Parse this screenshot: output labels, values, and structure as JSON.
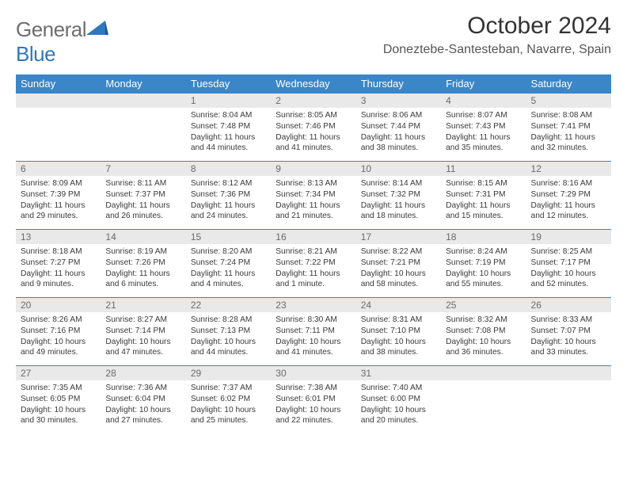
{
  "logo": {
    "text1": "General",
    "text2": "Blue"
  },
  "title": "October 2024",
  "location": "Doneztebe-Santesteban, Navarre, Spain",
  "colors": {
    "header_bg": "#3b86c7",
    "header_text": "#ffffff",
    "daynum_bg": "#e9e9e9",
    "daynum_text": "#6a6a6a",
    "row_border": "#3b86c7",
    "logo_gray": "#6e6e6e",
    "logo_blue": "#2f77bb"
  },
  "weekdays": [
    "Sunday",
    "Monday",
    "Tuesday",
    "Wednesday",
    "Thursday",
    "Friday",
    "Saturday"
  ],
  "first_weekday_index": 2,
  "days": [
    {
      "n": 1,
      "sunrise": "8:04 AM",
      "sunset": "7:48 PM",
      "daylight": "11 hours and 44 minutes."
    },
    {
      "n": 2,
      "sunrise": "8:05 AM",
      "sunset": "7:46 PM",
      "daylight": "11 hours and 41 minutes."
    },
    {
      "n": 3,
      "sunrise": "8:06 AM",
      "sunset": "7:44 PM",
      "daylight": "11 hours and 38 minutes."
    },
    {
      "n": 4,
      "sunrise": "8:07 AM",
      "sunset": "7:43 PM",
      "daylight": "11 hours and 35 minutes."
    },
    {
      "n": 5,
      "sunrise": "8:08 AM",
      "sunset": "7:41 PM",
      "daylight": "11 hours and 32 minutes."
    },
    {
      "n": 6,
      "sunrise": "8:09 AM",
      "sunset": "7:39 PM",
      "daylight": "11 hours and 29 minutes."
    },
    {
      "n": 7,
      "sunrise": "8:11 AM",
      "sunset": "7:37 PM",
      "daylight": "11 hours and 26 minutes."
    },
    {
      "n": 8,
      "sunrise": "8:12 AM",
      "sunset": "7:36 PM",
      "daylight": "11 hours and 24 minutes."
    },
    {
      "n": 9,
      "sunrise": "8:13 AM",
      "sunset": "7:34 PM",
      "daylight": "11 hours and 21 minutes."
    },
    {
      "n": 10,
      "sunrise": "8:14 AM",
      "sunset": "7:32 PM",
      "daylight": "11 hours and 18 minutes."
    },
    {
      "n": 11,
      "sunrise": "8:15 AM",
      "sunset": "7:31 PM",
      "daylight": "11 hours and 15 minutes."
    },
    {
      "n": 12,
      "sunrise": "8:16 AM",
      "sunset": "7:29 PM",
      "daylight": "11 hours and 12 minutes."
    },
    {
      "n": 13,
      "sunrise": "8:18 AM",
      "sunset": "7:27 PM",
      "daylight": "11 hours and 9 minutes."
    },
    {
      "n": 14,
      "sunrise": "8:19 AM",
      "sunset": "7:26 PM",
      "daylight": "11 hours and 6 minutes."
    },
    {
      "n": 15,
      "sunrise": "8:20 AM",
      "sunset": "7:24 PM",
      "daylight": "11 hours and 4 minutes."
    },
    {
      "n": 16,
      "sunrise": "8:21 AM",
      "sunset": "7:22 PM",
      "daylight": "11 hours and 1 minute."
    },
    {
      "n": 17,
      "sunrise": "8:22 AM",
      "sunset": "7:21 PM",
      "daylight": "10 hours and 58 minutes."
    },
    {
      "n": 18,
      "sunrise": "8:24 AM",
      "sunset": "7:19 PM",
      "daylight": "10 hours and 55 minutes."
    },
    {
      "n": 19,
      "sunrise": "8:25 AM",
      "sunset": "7:17 PM",
      "daylight": "10 hours and 52 minutes."
    },
    {
      "n": 20,
      "sunrise": "8:26 AM",
      "sunset": "7:16 PM",
      "daylight": "10 hours and 49 minutes."
    },
    {
      "n": 21,
      "sunrise": "8:27 AM",
      "sunset": "7:14 PM",
      "daylight": "10 hours and 47 minutes."
    },
    {
      "n": 22,
      "sunrise": "8:28 AM",
      "sunset": "7:13 PM",
      "daylight": "10 hours and 44 minutes."
    },
    {
      "n": 23,
      "sunrise": "8:30 AM",
      "sunset": "7:11 PM",
      "daylight": "10 hours and 41 minutes."
    },
    {
      "n": 24,
      "sunrise": "8:31 AM",
      "sunset": "7:10 PM",
      "daylight": "10 hours and 38 minutes."
    },
    {
      "n": 25,
      "sunrise": "8:32 AM",
      "sunset": "7:08 PM",
      "daylight": "10 hours and 36 minutes."
    },
    {
      "n": 26,
      "sunrise": "8:33 AM",
      "sunset": "7:07 PM",
      "daylight": "10 hours and 33 minutes."
    },
    {
      "n": 27,
      "sunrise": "7:35 AM",
      "sunset": "6:05 PM",
      "daylight": "10 hours and 30 minutes."
    },
    {
      "n": 28,
      "sunrise": "7:36 AM",
      "sunset": "6:04 PM",
      "daylight": "10 hours and 27 minutes."
    },
    {
      "n": 29,
      "sunrise": "7:37 AM",
      "sunset": "6:02 PM",
      "daylight": "10 hours and 25 minutes."
    },
    {
      "n": 30,
      "sunrise": "7:38 AM",
      "sunset": "6:01 PM",
      "daylight": "10 hours and 22 minutes."
    },
    {
      "n": 31,
      "sunrise": "7:40 AM",
      "sunset": "6:00 PM",
      "daylight": "10 hours and 20 minutes."
    }
  ],
  "labels": {
    "sunrise": "Sunrise:",
    "sunset": "Sunset:",
    "daylight": "Daylight:"
  }
}
